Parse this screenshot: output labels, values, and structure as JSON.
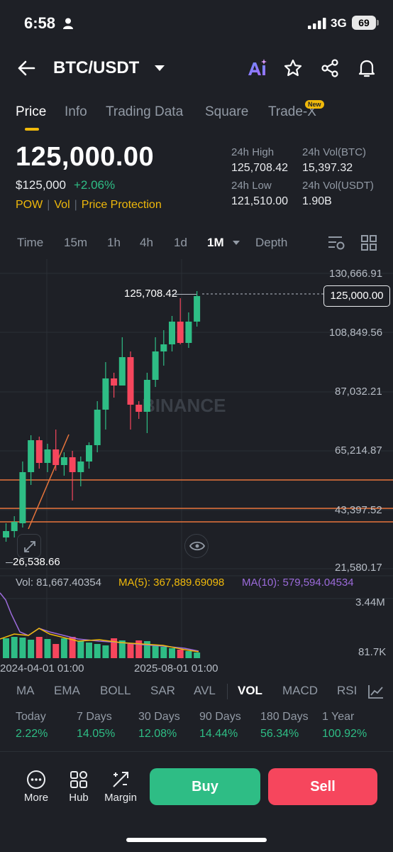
{
  "status": {
    "time": "6:58",
    "network": "3G",
    "battery": "69"
  },
  "header": {
    "pair": "BTC/USDT",
    "icons": [
      "back-arrow-icon",
      "dropdown-caret-icon",
      "ai-icon",
      "star-icon",
      "share-icon",
      "bell-icon"
    ]
  },
  "tabs": [
    {
      "label": "Price",
      "active": true
    },
    {
      "label": "Info"
    },
    {
      "label": "Trading Data"
    },
    {
      "label": "Square"
    },
    {
      "label": "Trade-X",
      "badge": "New"
    }
  ],
  "ticker": {
    "price": "125,000.00",
    "usd_price": "$125,000",
    "change": "+2.06%",
    "tags": [
      "POW",
      "Vol",
      "Price Protection"
    ],
    "stats": [
      {
        "label": "24h High",
        "value": "125,708.42"
      },
      {
        "label": "24h Vol(BTC)",
        "value": "15,397.32"
      },
      {
        "label": "24h Low",
        "value": "121,510.00"
      },
      {
        "label": "24h Vol(USDT)",
        "value": "1.90B"
      }
    ]
  },
  "intervals": [
    "Time",
    "15m",
    "1h",
    "4h",
    "1d",
    "1M",
    "Depth"
  ],
  "active_interval": "1M",
  "chart": {
    "price_axis": [
      "130,666.91",
      "108,849.56",
      "87,032.21",
      "65,214.87",
      "43,397.52",
      "21,580.17"
    ],
    "current_price_tag": "125,000.00",
    "high_label": "125,708.42",
    "low_label": "26,538.66",
    "watermark": "BINANCE",
    "volume_axis": [
      "3.44M",
      "81.7K"
    ],
    "time_axis": [
      "2024-04-01 01:00",
      "2025-08-01 01:00"
    ],
    "colors": {
      "up": "#2ebd85",
      "down": "#f6465d",
      "ma5": "#f0b90b",
      "ma10": "#9c6bdb",
      "hline": "#e8743b"
    }
  },
  "volume_indicator": {
    "vol": "Vol: 81,667.40354",
    "ma5": "MA(5): 367,889.69098",
    "ma10": "MA(10): 579,594.04534"
  },
  "indicator_tabs": [
    "MA",
    "EMA",
    "BOLL",
    "SAR",
    "AVL",
    "VOL",
    "MACD",
    "RSI"
  ],
  "active_indicator": "VOL",
  "performance": [
    {
      "label": "Today",
      "value": "2.22%"
    },
    {
      "label": "7 Days",
      "value": "14.05%"
    },
    {
      "label": "30 Days",
      "value": "12.08%"
    },
    {
      "label": "90 Days",
      "value": "14.44%"
    },
    {
      "label": "180 Days",
      "value": "56.34%"
    },
    {
      "label": "1 Year",
      "value": "100.92%"
    }
  ],
  "bottom": {
    "more": "More",
    "hub": "Hub",
    "margin": "Margin",
    "buy": "Buy",
    "sell": "Sell"
  }
}
